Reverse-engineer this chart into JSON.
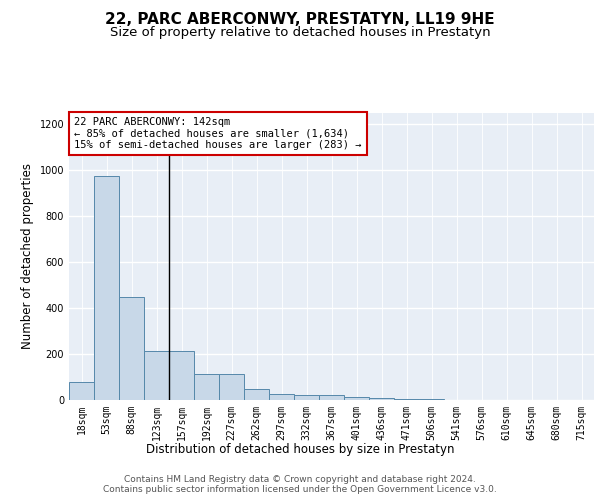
{
  "title": "22, PARC ABERCONWY, PRESTATYN, LL19 9HE",
  "subtitle": "Size of property relative to detached houses in Prestatyn",
  "xlabel": "Distribution of detached houses by size in Prestatyn",
  "ylabel": "Number of detached properties",
  "categories": [
    "18sqm",
    "53sqm",
    "88sqm",
    "123sqm",
    "157sqm",
    "192sqm",
    "227sqm",
    "262sqm",
    "297sqm",
    "332sqm",
    "367sqm",
    "401sqm",
    "436sqm",
    "471sqm",
    "506sqm",
    "541sqm",
    "576sqm",
    "610sqm",
    "645sqm",
    "680sqm",
    "715sqm"
  ],
  "values": [
    80,
    975,
    450,
    215,
    215,
    115,
    115,
    50,
    25,
    20,
    20,
    15,
    10,
    5,
    3,
    2,
    1,
    1,
    1,
    0,
    0
  ],
  "bar_color": "#c8d8e8",
  "bar_edge_color": "#5588aa",
  "background_color": "#e8eef6",
  "grid_color": "#ffffff",
  "vline_position": 3.5,
  "vline_color": "#000000",
  "annotation_text": "22 PARC ABERCONWY: 142sqm\n← 85% of detached houses are smaller (1,634)\n15% of semi-detached houses are larger (283) →",
  "annotation_box_color": "#ffffff",
  "annotation_box_edge": "#cc0000",
  "ylim": [
    0,
    1250
  ],
  "yticks": [
    0,
    200,
    400,
    600,
    800,
    1000,
    1200
  ],
  "footer_text": "Contains HM Land Registry data © Crown copyright and database right 2024.\nContains public sector information licensed under the Open Government Licence v3.0.",
  "title_fontsize": 11,
  "subtitle_fontsize": 9.5,
  "axis_label_fontsize": 8.5,
  "tick_fontsize": 7,
  "footer_fontsize": 6.5,
  "annotation_fontsize": 7.5
}
